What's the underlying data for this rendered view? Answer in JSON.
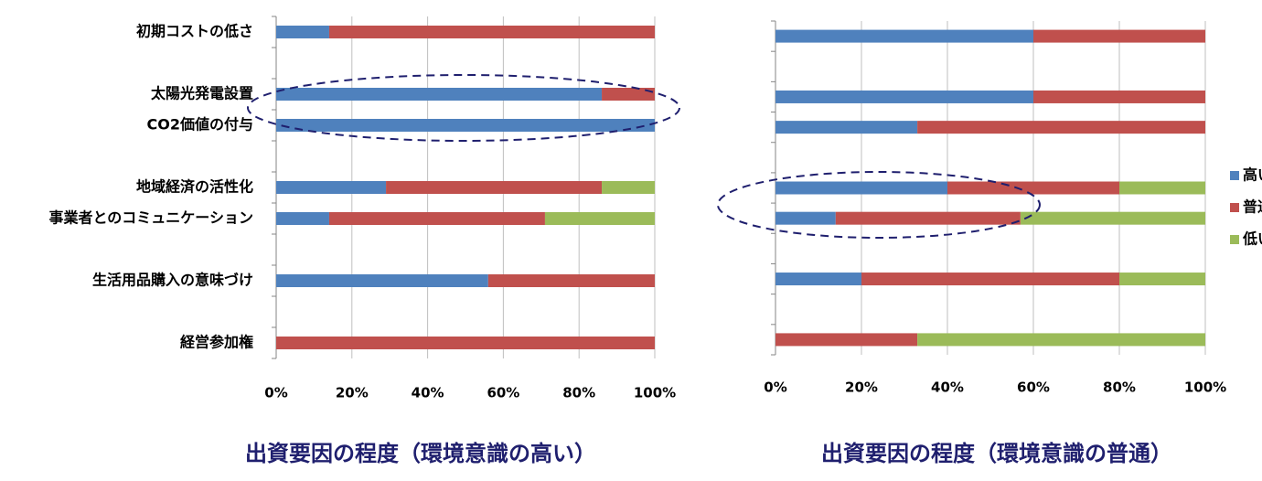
{
  "chart_data": [
    {
      "type": "bar",
      "stacked": true,
      "orientation": "horizontal",
      "title": "出資要因の程度（環境意識の高い）",
      "categories": [
        "初期コストの低さ",
        null,
        "太陽光発電設置",
        "CO2価値の付与",
        null,
        "地域経済の活性化",
        "事業者とのコミュニケーション",
        null,
        "生活用品購入の意味づけ",
        null,
        "経営参加権"
      ],
      "series": [
        {
          "name": "高い",
          "color": "#4f81bd",
          "values": [
            14,
            null,
            86,
            100,
            null,
            29,
            14,
            null,
            56,
            null,
            0
          ]
        },
        {
          "name": "普通",
          "color": "#c0504d",
          "values": [
            86,
            null,
            14,
            0,
            null,
            57,
            57,
            null,
            44,
            null,
            100
          ]
        },
        {
          "name": "低い",
          "color": "#9bbb59",
          "values": [
            0,
            null,
            0,
            0,
            null,
            14,
            29,
            null,
            0,
            null,
            0
          ]
        }
      ],
      "xlim": [
        0,
        100
      ],
      "xticks": [
        {
          "value": 0,
          "label": "0%"
        },
        {
          "value": 20,
          "label": "20%"
        },
        {
          "value": 40,
          "label": "40%"
        },
        {
          "value": 60,
          "label": "60%"
        },
        {
          "value": 80,
          "label": "80%"
        },
        {
          "value": 100,
          "label": "100%"
        }
      ],
      "grid": true
    },
    {
      "type": "bar",
      "stacked": true,
      "orientation": "horizontal",
      "title": "出資要因の程度（環境意識の普通）",
      "categories": [
        null,
        null,
        null,
        null,
        null,
        null,
        null,
        null,
        null,
        null,
        null
      ],
      "series": [
        {
          "name": "高い",
          "color": "#4f81bd",
          "values": [
            60,
            null,
            60,
            33,
            null,
            40,
            14,
            null,
            20,
            null,
            0
          ]
        },
        {
          "name": "普通",
          "color": "#c0504d",
          "values": [
            40,
            null,
            40,
            67,
            null,
            40,
            43,
            null,
            60,
            null,
            33
          ]
        },
        {
          "name": "低い",
          "color": "#9bbb59",
          "values": [
            0,
            null,
            0,
            0,
            null,
            20,
            43,
            null,
            20,
            null,
            67
          ]
        }
      ],
      "xlim": [
        0,
        100
      ],
      "xticks": [
        {
          "value": 0,
          "label": "0%"
        },
        {
          "value": 20,
          "label": "20%"
        },
        {
          "value": 40,
          "label": "40%"
        },
        {
          "value": 60,
          "label": "60%"
        },
        {
          "value": 80,
          "label": "80%"
        },
        {
          "value": 100,
          "label": "100%"
        }
      ],
      "grid": true,
      "legend": "right"
    }
  ]
}
